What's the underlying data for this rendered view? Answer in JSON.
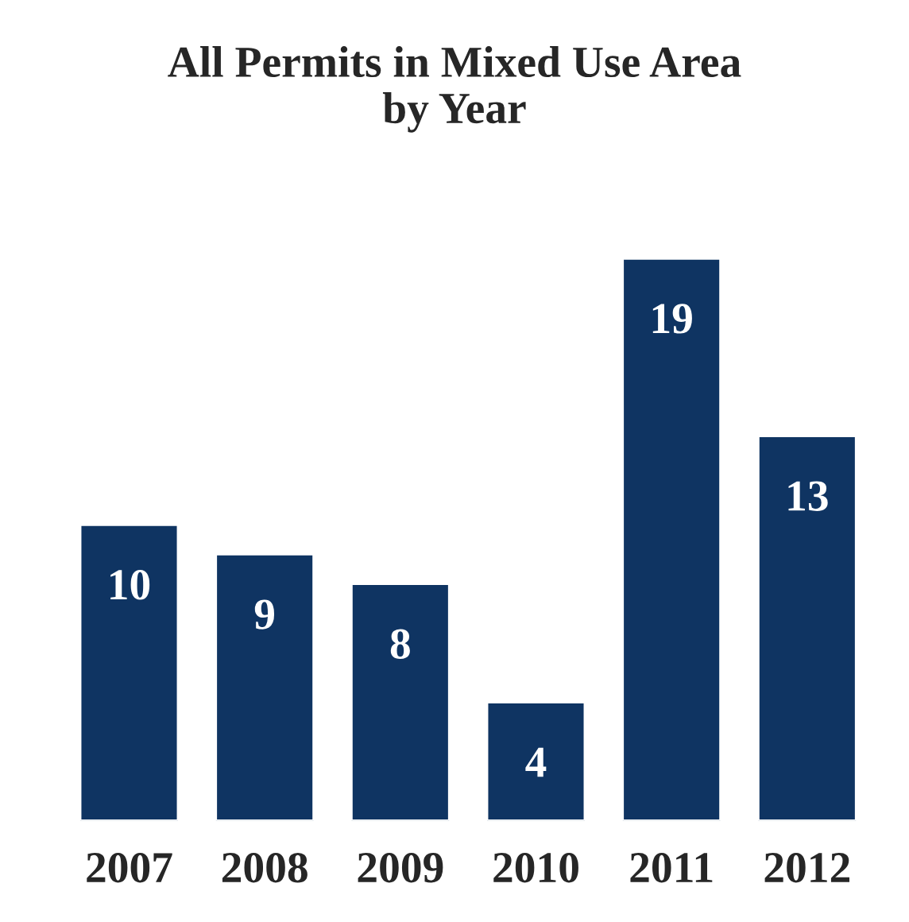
{
  "chart_data": {
    "type": "bar",
    "title": "All Permits in Mixed Use Area\nby Year",
    "categories": [
      "2007",
      "2008",
      "2009",
      "2010",
      "2011",
      "2012"
    ],
    "values": [
      10,
      9,
      8,
      4,
      19,
      13
    ],
    "color": "#0f3462",
    "data_labels": true,
    "grid": false,
    "legend": false
  }
}
